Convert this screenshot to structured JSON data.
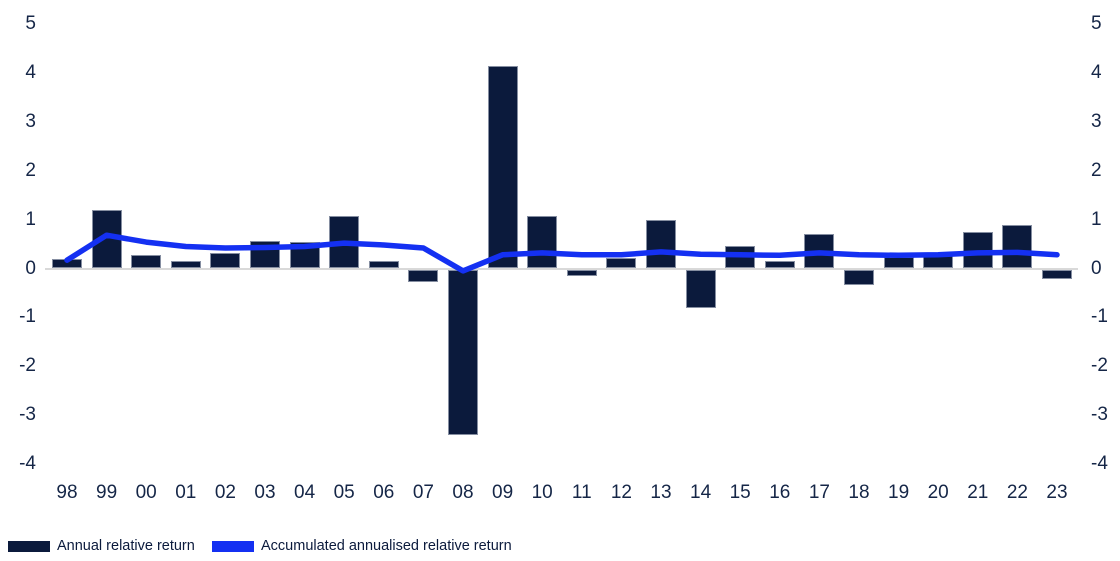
{
  "chart_data": {
    "type": "bar",
    "title": "",
    "xlabel": "",
    "ylabel": "",
    "categories": [
      "98",
      "99",
      "00",
      "01",
      "02",
      "03",
      "04",
      "05",
      "06",
      "07",
      "08",
      "09",
      "10",
      "11",
      "12",
      "13",
      "14",
      "15",
      "16",
      "17",
      "18",
      "19",
      "20",
      "21",
      "22",
      "23"
    ],
    "series": [
      {
        "name": "Annual relative return",
        "type": "bar",
        "color": "#0b1a3c",
        "values": [
          0.18,
          1.19,
          0.27,
          0.15,
          0.3,
          0.55,
          0.54,
          1.06,
          0.14,
          -0.24,
          -3.37,
          4.13,
          1.06,
          -0.13,
          0.21,
          0.99,
          -0.77,
          0.45,
          0.15,
          0.7,
          -0.3,
          0.23,
          0.27,
          0.74,
          0.88,
          -0.18
        ]
      },
      {
        "name": "Accumulated annualised relative return",
        "type": "line",
        "color": "#1430f2",
        "values": [
          0.17,
          0.68,
          0.54,
          0.45,
          0.42,
          0.43,
          0.45,
          0.52,
          0.48,
          0.42,
          -0.05,
          0.28,
          0.32,
          0.28,
          0.28,
          0.34,
          0.29,
          0.28,
          0.27,
          0.32,
          0.28,
          0.27,
          0.28,
          0.32,
          0.33,
          0.28
        ]
      }
    ],
    "ylim": [
      -4,
      5
    ],
    "yticks": [
      "5",
      "4",
      "3",
      "2",
      "1",
      "0",
      "-1",
      "-2",
      "-3",
      "-4"
    ],
    "ytick_values": [
      5,
      4,
      3,
      2,
      1,
      0,
      -1,
      -2,
      -3,
      -4
    ],
    "grid": "zero-axis-only",
    "y_axis_sides": "both",
    "legend_position": "bottom-left"
  },
  "legend": {
    "items": [
      {
        "label": "Annual relative return",
        "color": "#0b1a3c"
      },
      {
        "label": "Accumulated annualised relative return",
        "color": "#1430f2"
      }
    ]
  },
  "colors": {
    "background": "#ffffff",
    "bar": "#0b1a3c",
    "line": "#1430f2",
    "axis_line": "#d9d9d9",
    "tick_text": "#152647",
    "legend_text": "#0b1a3c"
  }
}
